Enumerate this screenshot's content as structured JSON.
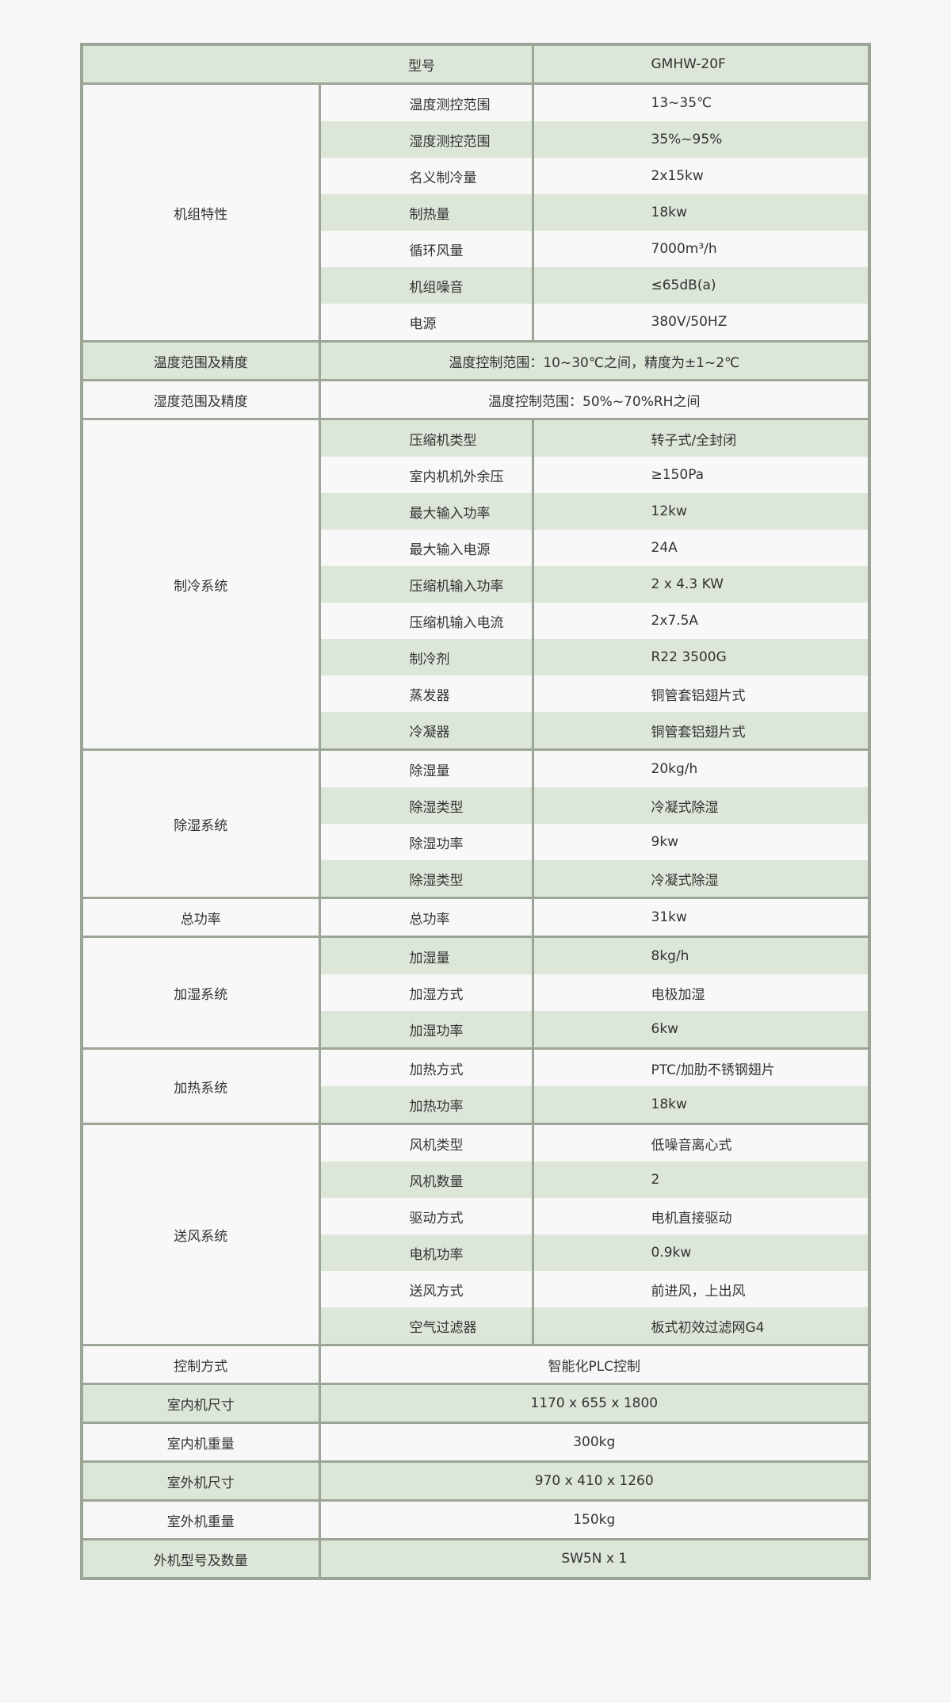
{
  "header": {
    "label": "型号",
    "value": "GMHW-20F"
  },
  "groups": [
    {
      "name": "机组特性",
      "rows": [
        [
          "温度测控范围",
          "13~35℃"
        ],
        [
          "湿度测控范围",
          "35%~95%"
        ],
        [
          "名义制冷量",
          "2x15kw"
        ],
        [
          "制热量",
          "18kw"
        ],
        [
          "循环风量",
          "7000m³/h"
        ],
        [
          "机组噪音",
          "≤65dB(a)"
        ],
        [
          "电源",
          "380V/50HZ"
        ]
      ]
    },
    {
      "name": "温度范围及精度",
      "value": "温度控制范围：10~30℃之间，精度为±1~2℃"
    },
    {
      "name": "湿度范围及精度",
      "value": "温度控制范围：50%~70%RH之间"
    },
    {
      "name": "制冷系统",
      "rows": [
        [
          "压缩机类型",
          "转子式/全封闭"
        ],
        [
          "室内机机外余压",
          "≥150Pa"
        ],
        [
          "最大输入功率",
          "12kw"
        ],
        [
          "最大输入电源",
          "24A"
        ],
        [
          "压缩机输入功率",
          "2 x 4.3 KW"
        ],
        [
          "压缩机输入电流",
          "2x7.5A"
        ],
        [
          "制冷剂",
          "R22 3500G"
        ],
        [
          "蒸发器",
          "铜管套铝翅片式"
        ],
        [
          "冷凝器",
          "铜管套铝翅片式"
        ]
      ]
    },
    {
      "name": "除湿系统",
      "rows": [
        [
          "除湿量",
          "20kg/h"
        ],
        [
          "除湿类型",
          "冷凝式除湿"
        ],
        [
          "除湿功率",
          "9kw"
        ],
        [
          "除湿类型",
          "冷凝式除湿"
        ]
      ]
    },
    {
      "name": "总功率",
      "rows": [
        [
          "总功率",
          "31kw"
        ]
      ]
    },
    {
      "name": "加湿系统",
      "rows": [
        [
          "加湿量",
          "8kg/h"
        ],
        [
          "加湿方式",
          "电极加湿"
        ],
        [
          "加湿功率",
          "6kw"
        ]
      ]
    },
    {
      "name": "加热系统",
      "rows": [
        [
          "加热方式",
          "PTC/加肋不锈钢翅片"
        ],
        [
          "加热功率",
          "18kw"
        ]
      ]
    },
    {
      "name": "送风系统",
      "rows": [
        [
          "风机类型",
          "低噪音离心式"
        ],
        [
          "风机数量",
          "2"
        ],
        [
          "驱动方式",
          "电机直接驱动"
        ],
        [
          "电机功率",
          "0.9kw"
        ],
        [
          "送风方式",
          "前进风，上出风"
        ],
        [
          "空气过滤器",
          "板式初效过滤网G4"
        ]
      ]
    },
    {
      "name": "控制方式",
      "value": "智能化PLC控制"
    },
    {
      "name": "室内机尺寸",
      "value": "1170 x 655 x 1800"
    },
    {
      "name": "室内机重量",
      "value": "300kg"
    },
    {
      "name": "室外机尺寸",
      "value": "970 x 410 x 1260"
    },
    {
      "name": "室外机重量",
      "value": "150kg"
    },
    {
      "name": "外机型号及数量",
      "value": "SW5N x 1"
    }
  ],
  "colors": {
    "border": "#9ba696",
    "stripe": "#dce6d9",
    "background": "#f8f8f8"
  }
}
